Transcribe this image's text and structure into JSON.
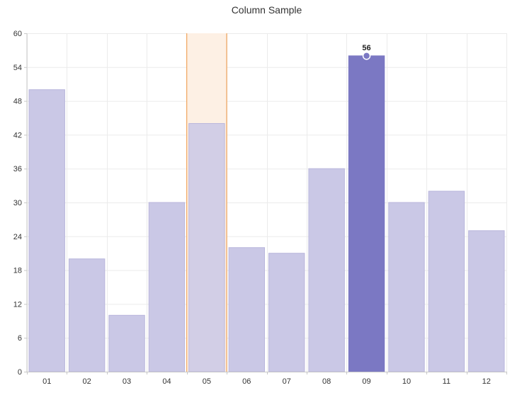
{
  "chart_data": {
    "type": "bar",
    "title": "Column Sample",
    "xlabel": "",
    "ylabel": "",
    "categories": [
      "01",
      "02",
      "03",
      "04",
      "05",
      "06",
      "07",
      "08",
      "09",
      "10",
      "11",
      "12"
    ],
    "values": [
      50,
      20,
      10,
      30,
      44,
      22,
      21,
      36,
      56,
      30,
      32,
      25
    ],
    "ylim": [
      0,
      60
    ],
    "yticks": [
      0,
      6,
      12,
      18,
      24,
      30,
      36,
      42,
      48,
      54,
      60
    ],
    "grid": true,
    "legend": "none",
    "highlighted_band_category": "05",
    "selected_category": "09",
    "selected_value_label": "56",
    "colors": {
      "bar": "#cac8e6",
      "bar_selected": "#7b78c3",
      "band_fill": "#fdf0e4",
      "band_edge": "#f0a35c",
      "grid": "#ebebeb",
      "axis": "#c8c8c8"
    }
  }
}
